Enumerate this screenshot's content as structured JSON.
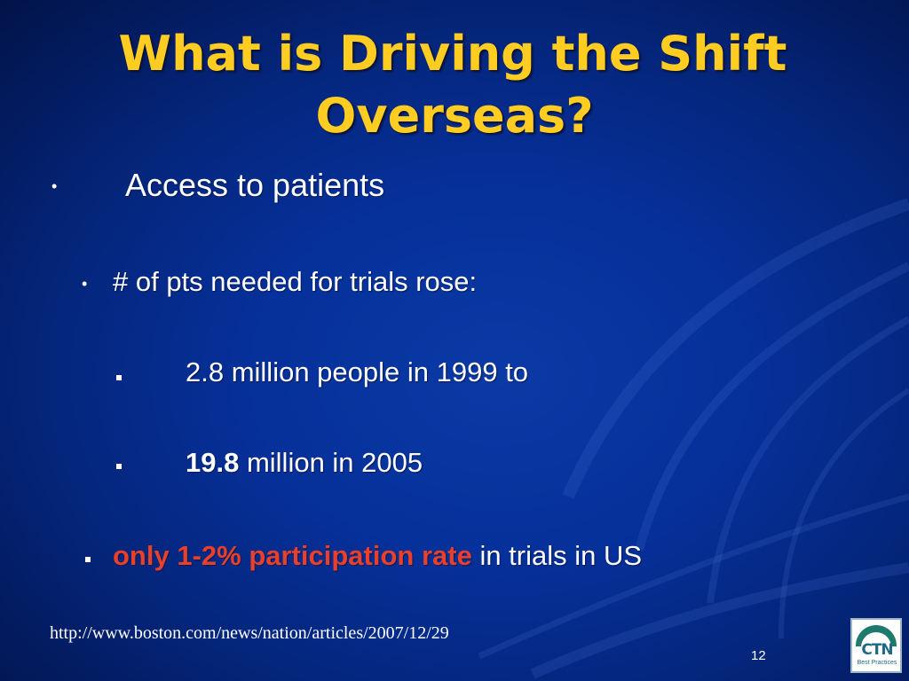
{
  "slide": {
    "title_line1": "What is Driving the Shift",
    "title_line2": "Overseas?",
    "bullets": {
      "b1": "Access to patients",
      "b2": "# of pts needed for trials rose:",
      "b3": "2.8 million people in 1999 to",
      "b4_bold": "19.8",
      "b4_rest": " million in 2005",
      "b5_red": "only 1-2% participation rate",
      "b5_rest": " in trials in US"
    },
    "source_url": "http://www.boston.com/news/nation/articles/2007/12/29",
    "page_number": "12",
    "logo": {
      "text": "CTN",
      "subtext": "Best Practices"
    },
    "colors": {
      "title": "#ffcc22",
      "highlight": "#e8402a",
      "background": "#06309a"
    }
  }
}
